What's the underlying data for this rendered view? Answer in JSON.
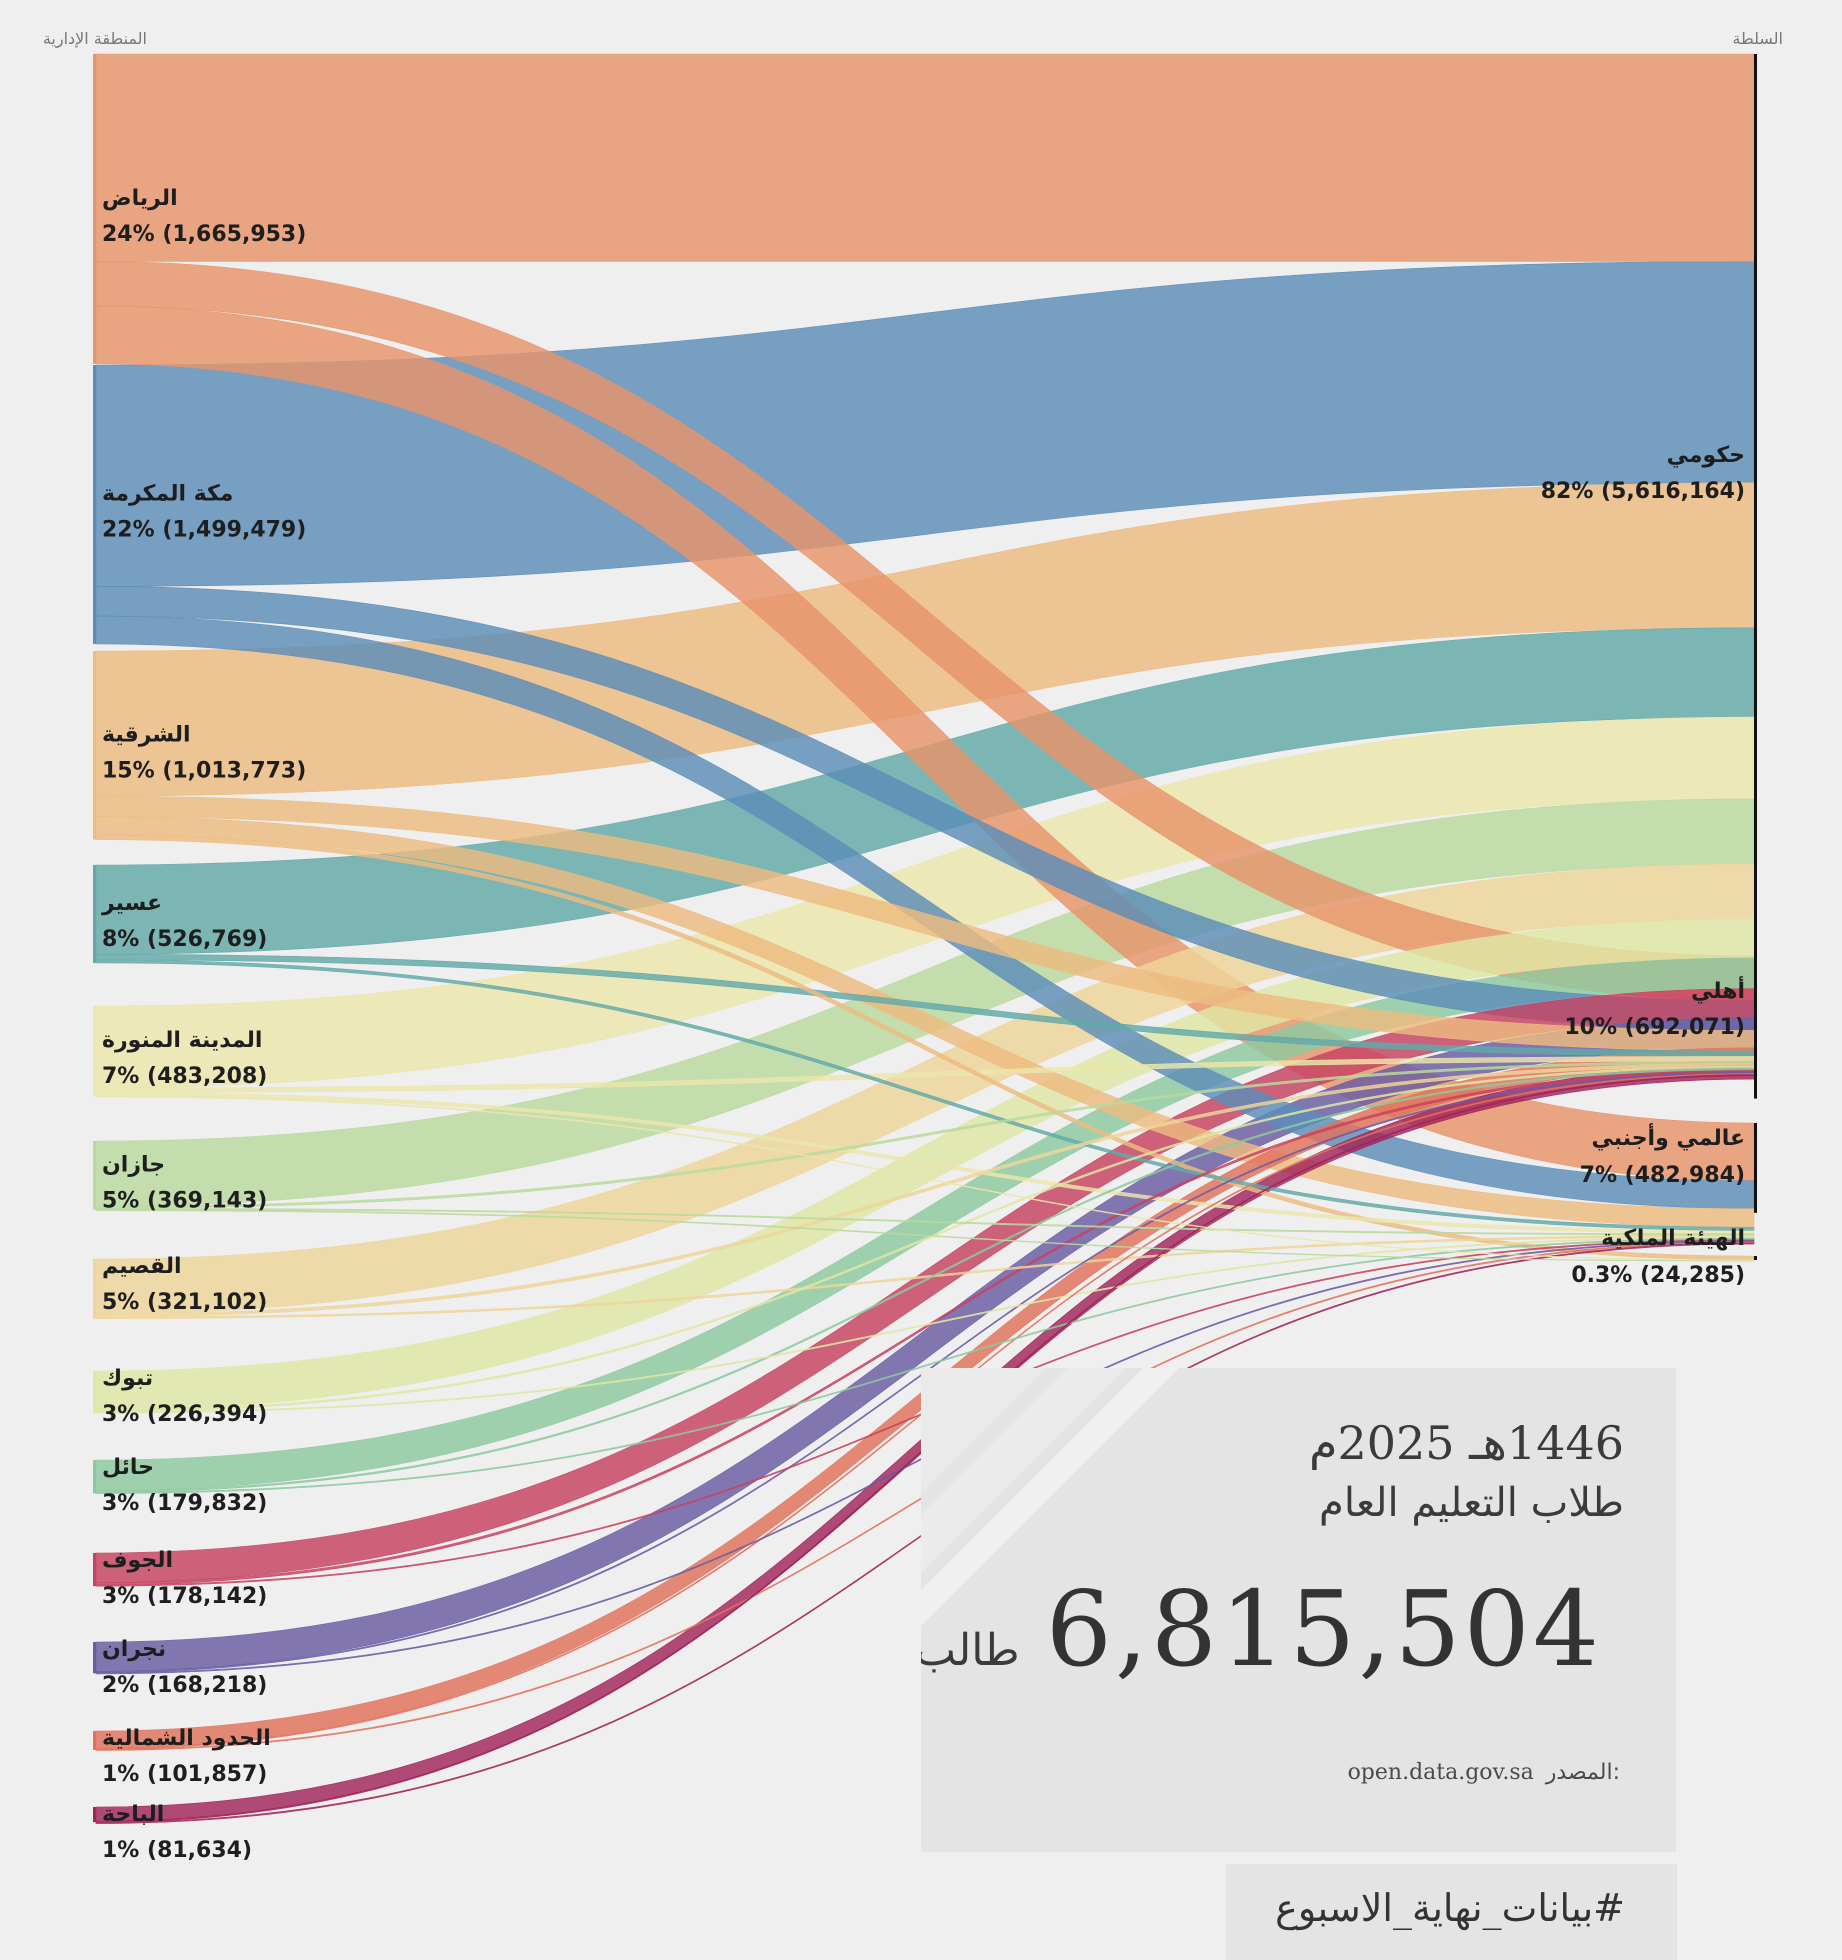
{
  "chart_data": {
    "type": "sankey",
    "left_header": "المنطقة الإدارية",
    "right_header": "السلطة",
    "sources": [
      {
        "name": "الرياض",
        "share": "24%",
        "total": 1665953,
        "color": "#e8946a"
      },
      {
        "name": "مكة المكرمة",
        "share": "22%",
        "total": 1499479,
        "color": "#5b8db8"
      },
      {
        "name": "الشرقية",
        "share": "15%",
        "total": 1013773,
        "color": "#edbb80"
      },
      {
        "name": "عسير",
        "share": "8%",
        "total": 526769,
        "color": "#62a9a8"
      },
      {
        "name": "المدينة المنورة",
        "share": "7%",
        "total": 483208,
        "color": "#ebe6ab"
      },
      {
        "name": "جازان",
        "share": "5%",
        "total": 369143,
        "color": "#b9d99e"
      },
      {
        "name": "القصيم",
        "share": "5%",
        "total": 321102,
        "color": "#eed59a"
      },
      {
        "name": "تبوك",
        "share": "3%",
        "total": 226394,
        "color": "#dfe7a4"
      },
      {
        "name": "حائل",
        "share": "3%",
        "total": 179832,
        "color": "#8dc9a0"
      },
      {
        "name": "الجوف",
        "share": "3%",
        "total": 178142,
        "color": "#c64260"
      },
      {
        "name": "نجران",
        "share": "2%",
        "total": 168218,
        "color": "#6a5ca4"
      },
      {
        "name": "الحدود الشمالية",
        "share": "1%",
        "total": 101857,
        "color": "#e2715c"
      },
      {
        "name": "الباحة",
        "share": "1%",
        "total": 81634,
        "color": "#a1245a"
      }
    ],
    "targets": [
      {
        "name": "حكومي",
        "share": "82%",
        "total": 5616164
      },
      {
        "name": "أهلي",
        "share": "10%",
        "total": 692071
      },
      {
        "name": "عالمي وأجنبي",
        "share": "7%",
        "total": 482984
      },
      {
        "name": "الهيئة الملكية",
        "share": "0.3%",
        "total": 24285
      }
    ],
    "flows": [
      [
        1115000,
        240000,
        310953,
        0
      ],
      [
        1190000,
        160000,
        149479,
        0
      ],
      [
        780000,
        110000,
        100000,
        23773
      ],
      [
        480000,
        30000,
        16769,
        0
      ],
      [
        440000,
        25000,
        18000,
        208
      ],
      [
        350000,
        12000,
        6839,
        304
      ],
      [
        295000,
        16000,
        10102,
        0
      ],
      [
        210000,
        10000,
        6394,
        0
      ],
      [
        165000,
        9000,
        5832,
        0
      ],
      [
        160000,
        12000,
        6142,
        0
      ],
      [
        158000,
        7000,
        3218,
        0
      ],
      [
        92000,
        6000,
        3857,
        0
      ],
      [
        76164,
        3071,
        2399,
        0
      ]
    ]
  },
  "card": {
    "year": "1446هـ 2025م",
    "subtitle": "طلاب التعليم العام",
    "total": "6,815,504",
    "unit": "طالب",
    "source_label": "المصدر:",
    "source_url": "open.data.gov.sa"
  },
  "hashtag": "#بيانات_نهاية_الاسبوع"
}
